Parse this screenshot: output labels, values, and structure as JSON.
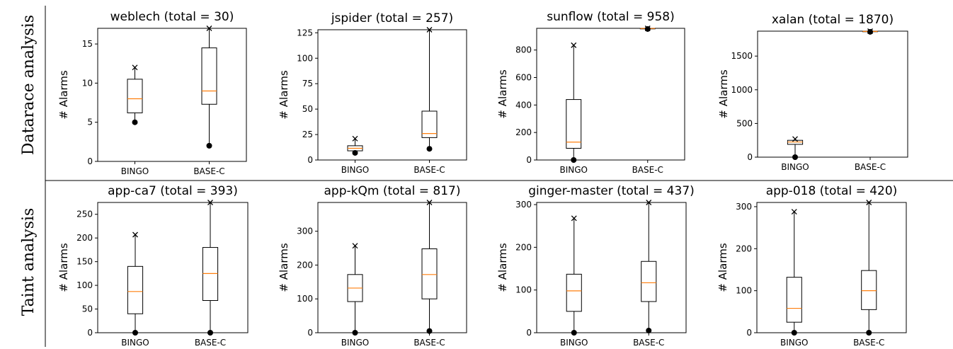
{
  "row_labels": [
    "Datarace analysis",
    "Taint analysis"
  ],
  "chart_data": [
    {
      "type": "box",
      "title": "weblech (total = 30)",
      "ylabel": "# Alarms",
      "categories": [
        "BINGO",
        "BASE-C"
      ],
      "ylim": [
        0,
        17
      ],
      "yticks": [
        0,
        5,
        10,
        15
      ],
      "boxes": [
        {
          "q1": 6.2,
          "median": 8.0,
          "q3": 10.5,
          "whisker_low": 5.0,
          "whisker_high": 12.0,
          "min_marker": 5.0,
          "max_marker": 12.0
        },
        {
          "q1": 7.3,
          "median": 9.0,
          "q3": 14.5,
          "whisker_low": 2.0,
          "whisker_high": 17.0,
          "min_marker": 2.0,
          "max_marker": 17.0
        }
      ]
    },
    {
      "type": "box",
      "title": "jspider (total = 257)",
      "ylabel": "# Alarms",
      "categories": [
        "BINGO",
        "BASE-C"
      ],
      "ylim": [
        0,
        128
      ],
      "yticks": [
        0,
        25,
        50,
        75,
        100,
        125
      ],
      "boxes": [
        {
          "q1": 9,
          "median": 11.5,
          "q3": 14,
          "whisker_low": 7,
          "whisker_high": 21,
          "min_marker": 7,
          "max_marker": 21
        },
        {
          "q1": 22,
          "median": 26,
          "q3": 48,
          "whisker_low": 11,
          "whisker_high": 128,
          "min_marker": 11,
          "max_marker": 128
        }
      ]
    },
    {
      "type": "box",
      "title": "sunflow (total = 958)",
      "ylabel": "# Alarms",
      "categories": [
        "BINGO",
        "BASE-C"
      ],
      "ylim": [
        0,
        958
      ],
      "yticks": [
        0,
        200,
        400,
        600,
        800
      ],
      "boxes": [
        {
          "q1": 85,
          "median": 130,
          "q3": 440,
          "whisker_low": 0,
          "whisker_high": 835,
          "min_marker": 0,
          "max_marker": 835
        },
        {
          "q1": 955,
          "median": 957,
          "q3": 958,
          "whisker_low": 953,
          "whisker_high": 958,
          "min_marker": 953,
          "max_marker": 958
        }
      ]
    },
    {
      "type": "box",
      "title": "xalan (total = 1870)",
      "ylabel": "# Alarms",
      "categories": [
        "BINGO",
        "BASE-C"
      ],
      "ylim": [
        0,
        1870
      ],
      "yticks": [
        0,
        500,
        1000,
        1500
      ],
      "boxes": [
        {
          "q1": 190,
          "median": 225,
          "q3": 250,
          "whisker_low": 0,
          "whisker_high": 270,
          "min_marker": 0,
          "max_marker": 270
        },
        {
          "q1": 1862,
          "median": 1866,
          "q3": 1870,
          "whisker_low": 1860,
          "whisker_high": 1870,
          "min_marker": 1860,
          "max_marker": 1870
        }
      ]
    },
    {
      "type": "box",
      "title": "app-ca7 (total = 393)",
      "ylabel": "# Alarms",
      "categories": [
        "BINGO",
        "BASE-C"
      ],
      "ylim": [
        0,
        275
      ],
      "yticks": [
        0,
        50,
        100,
        150,
        200,
        250
      ],
      "boxes": [
        {
          "q1": 40,
          "median": 87,
          "q3": 140,
          "whisker_low": 0,
          "whisker_high": 207,
          "min_marker": 0,
          "max_marker": 207
        },
        {
          "q1": 68,
          "median": 125,
          "q3": 180,
          "whisker_low": 0,
          "whisker_high": 275,
          "min_marker": 0,
          "max_marker": 275
        }
      ]
    },
    {
      "type": "box",
      "title": "app-kQm (total = 817)",
      "ylabel": "# Alarms",
      "categories": [
        "BINGO",
        "BASE-C"
      ],
      "ylim": [
        0,
        385
      ],
      "yticks": [
        0,
        100,
        200,
        300
      ],
      "boxes": [
        {
          "q1": 92,
          "median": 132,
          "q3": 172,
          "whisker_low": 0,
          "whisker_high": 257,
          "min_marker": 0,
          "max_marker": 257
        },
        {
          "q1": 100,
          "median": 172,
          "q3": 248,
          "whisker_low": 5,
          "whisker_high": 385,
          "min_marker": 5,
          "max_marker": 385
        }
      ]
    },
    {
      "type": "box",
      "title": "ginger-master (total = 437)",
      "ylabel": "# Alarms",
      "categories": [
        "BINGO",
        "BASE-C"
      ],
      "ylim": [
        0,
        305
      ],
      "yticks": [
        0,
        100,
        200,
        300
      ],
      "boxes": [
        {
          "q1": 50,
          "median": 98,
          "q3": 137,
          "whisker_low": 0,
          "whisker_high": 268,
          "min_marker": 0,
          "max_marker": 268
        },
        {
          "q1": 73,
          "median": 117,
          "q3": 167,
          "whisker_low": 5,
          "whisker_high": 305,
          "min_marker": 5,
          "max_marker": 305
        }
      ]
    },
    {
      "type": "box",
      "title": "app-018 (total = 420)",
      "ylabel": "# Alarms",
      "categories": [
        "BINGO",
        "BASE-C"
      ],
      "ylim": [
        0,
        310
      ],
      "yticks": [
        0,
        100,
        200,
        300
      ],
      "boxes": [
        {
          "q1": 25,
          "median": 58,
          "q3": 132,
          "whisker_low": 0,
          "whisker_high": 288,
          "min_marker": 0,
          "max_marker": 288
        },
        {
          "q1": 55,
          "median": 100,
          "q3": 148,
          "whisker_low": 0,
          "whisker_high": 310,
          "min_marker": 0,
          "max_marker": 310
        }
      ]
    }
  ],
  "colors": {
    "median": "#ff7f0e",
    "line": "#000000"
  }
}
